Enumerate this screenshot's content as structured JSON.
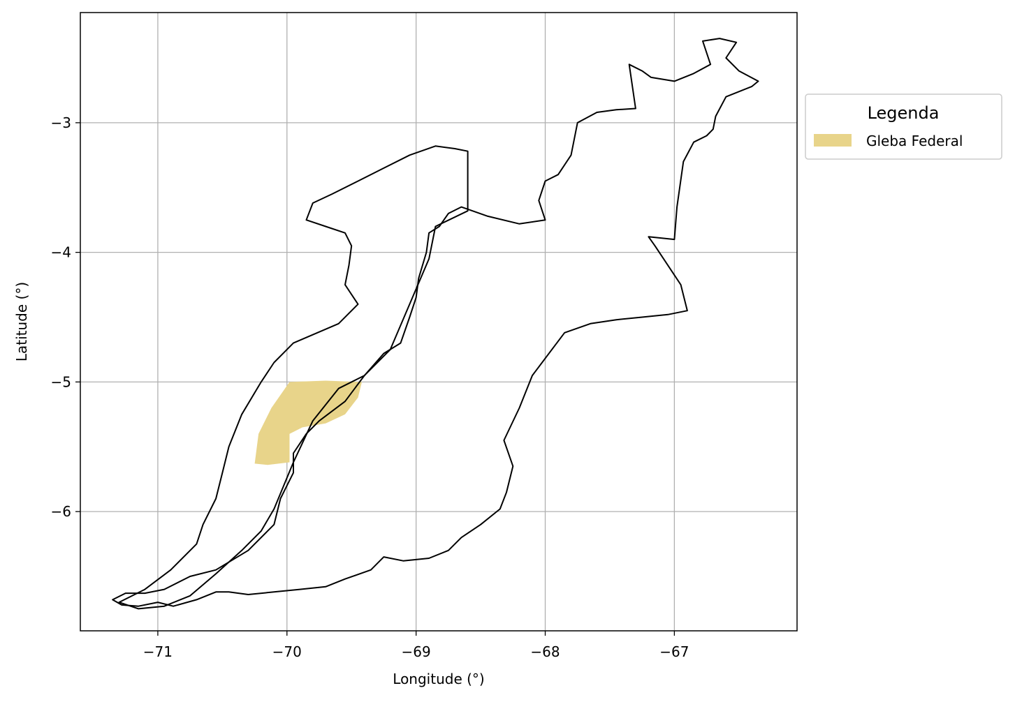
{
  "chart_data": {
    "type": "map",
    "xlabel": "Longitude (°)",
    "ylabel": "Latitude (°)",
    "xlim": [
      -71.6,
      -66.05
    ],
    "ylim": [
      -6.92,
      -2.15
    ],
    "grid": true,
    "x_ticks": [
      {
        "value": -71,
        "label": "−71"
      },
      {
        "value": -70,
        "label": "−70"
      },
      {
        "value": -69,
        "label": "−69"
      },
      {
        "value": -68,
        "label": "−68"
      },
      {
        "value": -67,
        "label": "−67"
      }
    ],
    "y_ticks": [
      {
        "value": -3,
        "label": "−3"
      },
      {
        "value": -4,
        "label": "−4"
      },
      {
        "value": -5,
        "label": "−5"
      },
      {
        "value": -6,
        "label": "−6"
      }
    ],
    "legend": {
      "title": "Legenda",
      "placement": "outside-upper-right",
      "entries": [
        {
          "label": "Gleba Federal",
          "color": "#e8d48a"
        }
      ]
    },
    "colors": {
      "boundary": "#000000",
      "gleba_fill": "#e8d48a",
      "grid": "#b0b0b0"
    },
    "outer_boundary": [
      [
        -71.35,
        -6.68
      ],
      [
        -71.28,
        -6.72
      ],
      [
        -71.15,
        -6.73
      ],
      [
        -71.0,
        -6.7
      ],
      [
        -70.88,
        -6.73
      ],
      [
        -70.7,
        -6.68
      ],
      [
        -70.55,
        -6.62
      ],
      [
        -70.45,
        -6.62
      ],
      [
        -70.3,
        -6.64
      ],
      [
        -70.1,
        -6.62
      ],
      [
        -69.9,
        -6.6
      ],
      [
        -69.7,
        -6.58
      ],
      [
        -69.55,
        -6.52
      ],
      [
        -69.35,
        -6.45
      ],
      [
        -69.25,
        -6.35
      ],
      [
        -69.1,
        -6.38
      ],
      [
        -68.9,
        -6.36
      ],
      [
        -68.75,
        -6.3
      ],
      [
        -68.65,
        -6.2
      ],
      [
        -68.5,
        -6.1
      ],
      [
        -68.35,
        -5.98
      ],
      [
        -68.3,
        -5.85
      ],
      [
        -68.25,
        -5.65
      ],
      [
        -68.32,
        -5.45
      ],
      [
        -68.2,
        -5.2
      ],
      [
        -68.1,
        -4.95
      ],
      [
        -67.85,
        -4.62
      ],
      [
        -67.65,
        -4.55
      ],
      [
        -67.45,
        -4.52
      ],
      [
        -67.25,
        -4.5
      ],
      [
        -67.05,
        -4.48
      ],
      [
        -66.9,
        -4.45
      ],
      [
        -66.95,
        -4.25
      ],
      [
        -67.05,
        -4.1
      ],
      [
        -67.15,
        -3.95
      ],
      [
        -67.2,
        -3.88
      ],
      [
        -67.0,
        -3.9
      ],
      [
        -66.98,
        -3.65
      ],
      [
        -66.93,
        -3.3
      ],
      [
        -66.85,
        -3.15
      ],
      [
        -66.75,
        -3.1
      ],
      [
        -66.7,
        -3.05
      ],
      [
        -66.68,
        -2.95
      ],
      [
        -66.6,
        -2.8
      ],
      [
        -66.4,
        -2.72
      ],
      [
        -66.35,
        -2.68
      ],
      [
        -66.5,
        -2.6
      ],
      [
        -66.6,
        -2.5
      ],
      [
        -66.52,
        -2.38
      ],
      [
        -66.65,
        -2.35
      ],
      [
        -66.78,
        -2.37
      ],
      [
        -66.72,
        -2.55
      ],
      [
        -66.85,
        -2.62
      ],
      [
        -67.0,
        -2.68
      ],
      [
        -67.18,
        -2.65
      ],
      [
        -67.25,
        -2.6
      ],
      [
        -67.35,
        -2.55
      ],
      [
        -67.3,
        -2.89
      ],
      [
        -67.45,
        -2.9
      ],
      [
        -67.6,
        -2.92
      ],
      [
        -67.75,
        -3.0
      ],
      [
        -67.8,
        -3.25
      ],
      [
        -67.9,
        -3.4
      ],
      [
        -68.0,
        -3.45
      ],
      [
        -68.05,
        -3.6
      ],
      [
        -68.0,
        -3.75
      ],
      [
        -68.2,
        -3.78
      ],
      [
        -68.45,
        -3.72
      ],
      [
        -68.65,
        -3.65
      ],
      [
        -68.75,
        -3.7
      ],
      [
        -68.82,
        -3.8
      ],
      [
        -68.9,
        -3.85
      ],
      [
        -68.92,
        -4.0
      ],
      [
        -68.98,
        -4.2
      ],
      [
        -69.0,
        -4.35
      ],
      [
        -69.05,
        -4.5
      ],
      [
        -69.12,
        -4.7
      ],
      [
        -69.25,
        -4.78
      ],
      [
        -69.4,
        -4.95
      ],
      [
        -69.55,
        -5.15
      ],
      [
        -69.75,
        -5.3
      ],
      [
        -69.85,
        -5.4
      ],
      [
        -69.95,
        -5.55
      ],
      [
        -69.95,
        -5.7
      ],
      [
        -70.05,
        -5.9
      ],
      [
        -70.1,
        -6.1
      ],
      [
        -70.3,
        -6.3
      ],
      [
        -70.55,
        -6.45
      ],
      [
        -70.75,
        -6.5
      ],
      [
        -70.95,
        -6.6
      ],
      [
        -71.1,
        -6.63
      ],
      [
        -71.25,
        -6.63
      ],
      [
        -71.35,
        -6.68
      ]
    ],
    "inner_boundary": [
      [
        -70.95,
        -6.73
      ],
      [
        -70.75,
        -6.65
      ],
      [
        -70.55,
        -6.48
      ],
      [
        -70.35,
        -6.3
      ],
      [
        -70.2,
        -6.15
      ],
      [
        -70.1,
        -5.98
      ],
      [
        -69.95,
        -5.62
      ],
      [
        -69.8,
        -5.3
      ],
      [
        -69.6,
        -5.05
      ],
      [
        -69.4,
        -4.95
      ],
      [
        -69.2,
        -4.75
      ],
      [
        -69.05,
        -4.4
      ],
      [
        -68.9,
        -4.05
      ],
      [
        -68.85,
        -3.8
      ],
      [
        -68.6,
        -3.68
      ],
      [
        -68.6,
        -3.22
      ],
      [
        -68.7,
        -3.2
      ],
      [
        -68.85,
        -3.18
      ],
      [
        -69.05,
        -3.25
      ],
      [
        -69.25,
        -3.35
      ],
      [
        -69.45,
        -3.45
      ],
      [
        -69.65,
        -3.55
      ],
      [
        -69.8,
        -3.62
      ],
      [
        -69.85,
        -3.75
      ],
      [
        -69.7,
        -3.8
      ],
      [
        -69.55,
        -3.85
      ],
      [
        -69.5,
        -3.95
      ],
      [
        -69.52,
        -4.1
      ],
      [
        -69.55,
        -4.25
      ],
      [
        -69.45,
        -4.4
      ],
      [
        -69.6,
        -4.55
      ],
      [
        -69.95,
        -4.7
      ],
      [
        -70.1,
        -4.85
      ],
      [
        -70.2,
        -5.0
      ],
      [
        -70.35,
        -5.25
      ],
      [
        -70.45,
        -5.5
      ],
      [
        -70.5,
        -5.7
      ],
      [
        -70.55,
        -5.9
      ],
      [
        -70.65,
        -6.1
      ],
      [
        -70.7,
        -6.25
      ],
      [
        -70.9,
        -6.45
      ],
      [
        -71.1,
        -6.6
      ],
      [
        -71.3,
        -6.7
      ],
      [
        -71.15,
        -6.75
      ],
      [
        -70.95,
        -6.73
      ]
    ],
    "gleba_federal": [
      [
        -69.98,
        -5.0
      ],
      [
        -69.7,
        -4.99
      ],
      [
        -69.42,
        -5.0
      ],
      [
        -69.45,
        -5.12
      ],
      [
        -69.55,
        -5.25
      ],
      [
        -69.7,
        -5.32
      ],
      [
        -69.88,
        -5.35
      ],
      [
        -69.98,
        -5.4
      ],
      [
        -69.98,
        -5.62
      ],
      [
        -70.15,
        -5.64
      ],
      [
        -70.25,
        -5.63
      ],
      [
        -70.22,
        -5.4
      ],
      [
        -70.12,
        -5.2
      ],
      [
        -69.98,
        -5.0
      ]
    ]
  }
}
